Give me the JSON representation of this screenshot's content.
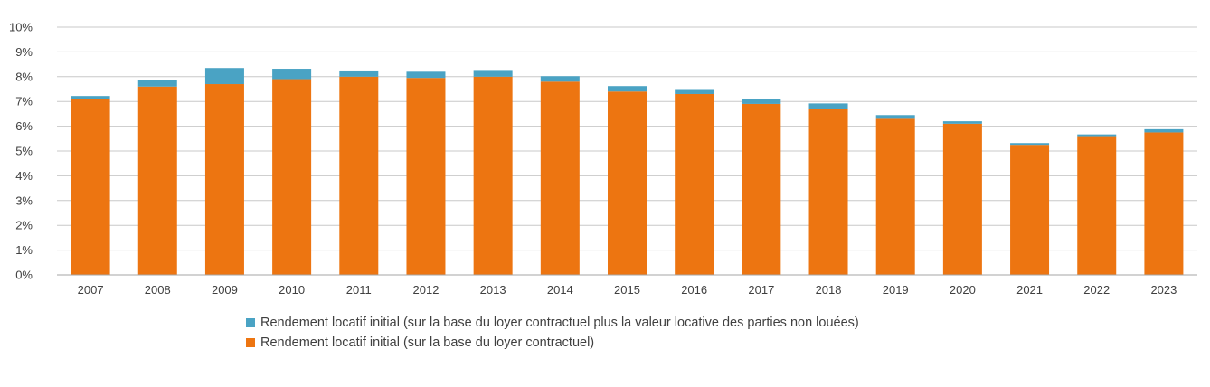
{
  "chart_data": {
    "type": "bar",
    "stacked": true,
    "title": "",
    "xlabel": "",
    "ylabel": "",
    "ylim": [
      0,
      10
    ],
    "ytick_values": [
      0,
      1,
      2,
      3,
      4,
      5,
      6,
      7,
      8,
      9,
      10
    ],
    "ytick_labels": [
      "0%",
      "1%",
      "2%",
      "3%",
      "4%",
      "5%",
      "6%",
      "7%",
      "8%",
      "9%",
      "10%"
    ],
    "grid": true,
    "legend_position": "bottom",
    "categories": [
      "2007",
      "2008",
      "2009",
      "2010",
      "2011",
      "2012",
      "2013",
      "2014",
      "2015",
      "2016",
      "2017",
      "2018",
      "2019",
      "2020",
      "2021",
      "2022",
      "2023"
    ],
    "series": [
      {
        "name": "Rendement locatif initial (sur la base du loyer contractuel)",
        "color": "#ED7511",
        "values": [
          7.1,
          7.6,
          7.7,
          7.9,
          8.0,
          7.95,
          8.0,
          7.8,
          7.4,
          7.3,
          6.9,
          6.7,
          6.3,
          6.1,
          5.25,
          5.6,
          5.75
        ]
      },
      {
        "name": "Rendement locatif initial (sur la base du loyer contractuel plus la valeur locative des parties non louées)",
        "color": "#4AA3C4",
        "values": [
          0.12,
          0.25,
          0.65,
          0.42,
          0.25,
          0.25,
          0.27,
          0.22,
          0.22,
          0.2,
          0.2,
          0.22,
          0.15,
          0.1,
          0.07,
          0.07,
          0.13
        ]
      }
    ]
  }
}
